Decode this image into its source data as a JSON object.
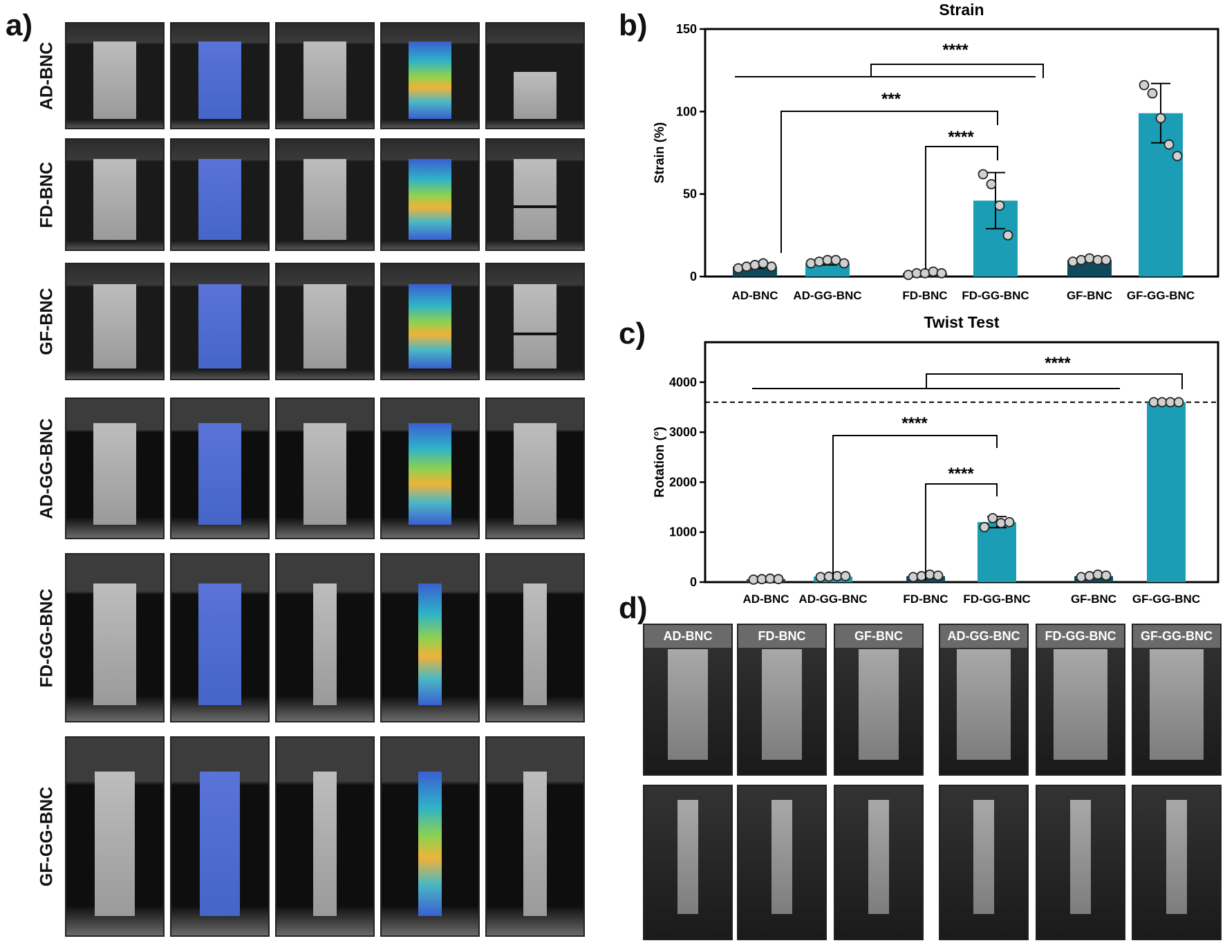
{
  "panels": {
    "a": "a)",
    "b": "b)",
    "c": "c)",
    "d": "d)"
  },
  "panel_a": {
    "rows": [
      "AD-BNC",
      "FD-BNC",
      "GF-BNC",
      "AD-GG-BNC",
      "FD-GG-BNC",
      "GF-GG-BNC"
    ]
  },
  "panel_d": {
    "labels": [
      "AD-BNC",
      "FD-BNC",
      "GF-BNC",
      "AD-GG-BNC",
      "FD-GG-BNC",
      "GF-GG-BNC"
    ]
  },
  "chart_data": [
    {
      "type": "bar",
      "title": "Strain",
      "ylabel": "Strain (%)",
      "xlabel": "",
      "categories": [
        "AD-BNC",
        "AD-GG-BNC",
        "FD-BNC",
        "FD-GG-BNC",
        "GF-BNC",
        "GF-GG-BNC"
      ],
      "values": [
        6,
        8,
        2,
        46,
        10,
        99
      ],
      "error": [
        1,
        1,
        0.5,
        17,
        1,
        18
      ],
      "points": [
        [
          5,
          6,
          7,
          8,
          6
        ],
        [
          8,
          9,
          10,
          10,
          8
        ],
        [
          1,
          2,
          2,
          3,
          2
        ],
        [
          62,
          56,
          43,
          25
        ],
        [
          9,
          10,
          11,
          10,
          10
        ],
        [
          116,
          111,
          96,
          80,
          73
        ]
      ],
      "ylim": [
        0,
        150
      ],
      "yticks": [
        0,
        50,
        100,
        150
      ],
      "bar_colors": [
        "#0f4a5c",
        "#1a9db5",
        "#0f4a5c",
        "#1a9db5",
        "#0f4a5c",
        "#1a9db5"
      ],
      "significance": [
        "****",
        "***",
        "****"
      ]
    },
    {
      "type": "bar",
      "title": "Twist Test",
      "ylabel": "Rotation (°)",
      "xlabel": "",
      "categories": [
        "AD-BNC",
        "AD-GG-BNC",
        "FD-BNC",
        "FD-GG-BNC",
        "GF-BNC",
        "GF-GG-BNC"
      ],
      "values": [
        60,
        110,
        120,
        1200,
        120,
        3600
      ],
      "error": [
        10,
        20,
        30,
        110,
        30,
        0
      ],
      "points": [
        [
          50,
          60,
          70,
          60
        ],
        [
          100,
          110,
          120,
          120
        ],
        [
          100,
          120,
          150,
          130
        ],
        [
          1100,
          1280,
          1180,
          1200
        ],
        [
          100,
          120,
          150,
          130
        ],
        [
          3600,
          3600,
          3600,
          3600
        ]
      ],
      "ylim": [
        0,
        4800
      ],
      "yticks": [
        0,
        1000,
        2000,
        3000,
        4000
      ],
      "reference_line": 3600,
      "bar_colors": [
        "#0f4a5c",
        "#1a9db5",
        "#0f4a5c",
        "#1a9db5",
        "#0f4a5c",
        "#1a9db5"
      ],
      "significance": [
        "****",
        "****",
        "****"
      ]
    }
  ]
}
